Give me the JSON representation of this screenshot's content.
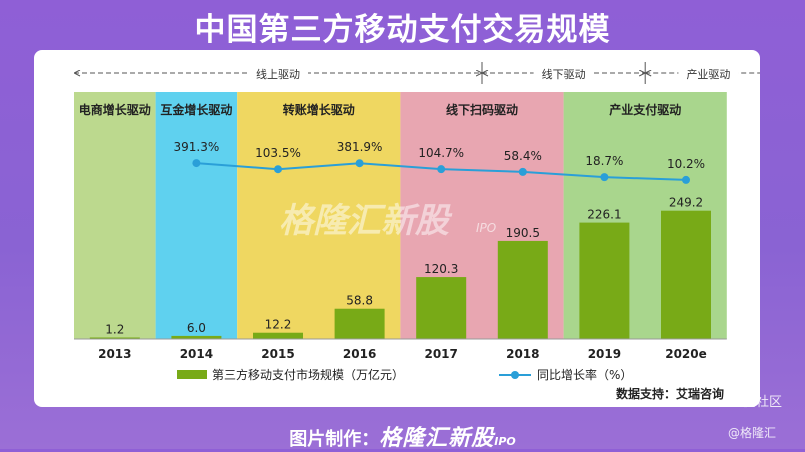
{
  "title": "中国第三方移动支付交易规模",
  "chart_data": {
    "type": "bar",
    "title": "中国第三方移动支付交易规模",
    "categories": [
      "2013",
      "2014",
      "2015",
      "2016",
      "2017",
      "2018",
      "2019",
      "2020e"
    ],
    "series": [
      {
        "name": "第三方移动支付市场规模（万亿元）",
        "type": "bar",
        "values": [
          1.2,
          6.0,
          12.2,
          58.8,
          120.3,
          190.5,
          226.1,
          249.2
        ],
        "labels": [
          "1.2",
          "6.0",
          "12.2",
          "58.8",
          "120.3",
          "190.5",
          "226.1",
          "249.2"
        ]
      },
      {
        "name": "同比增长率（%）",
        "type": "line",
        "values": [
          null,
          391.3,
          103.5,
          381.9,
          104.7,
          58.4,
          18.7,
          10.2
        ],
        "labels": [
          "",
          "391.3%",
          "103.5%",
          "381.9%",
          "104.7%",
          "58.4%",
          "18.7%",
          "10.2%"
        ]
      }
    ],
    "phases": [
      {
        "label": "电商增长驱动",
        "color": "#bcd98e"
      },
      {
        "label": "互金增长驱动",
        "color": "#5fd1ef"
      },
      {
        "label": "转账增长驱动",
        "color": "#efd761"
      },
      {
        "label": "线下扫码驱动",
        "color": "#e8a6b1"
      },
      {
        "label": "产业支付驱动",
        "color": "#a9d68d"
      }
    ],
    "stages": [
      {
        "label": "线上驱动"
      },
      {
        "label": "线下驱动"
      },
      {
        "label": "产业驱动"
      }
    ],
    "colors": {
      "bar": "#78aa17",
      "line": "#2a9fd8"
    },
    "source": "数据支持：艾瑞咨询"
  },
  "watermark": {
    "brand": "格隆汇新股",
    "ipo": "IPO"
  },
  "footer": {
    "prefix": "图片制作：",
    "brand": "格隆汇新股",
    "ipo": "IPO"
  },
  "corner": {
    "community": "老虎社区",
    "handle": "@格隆汇"
  }
}
